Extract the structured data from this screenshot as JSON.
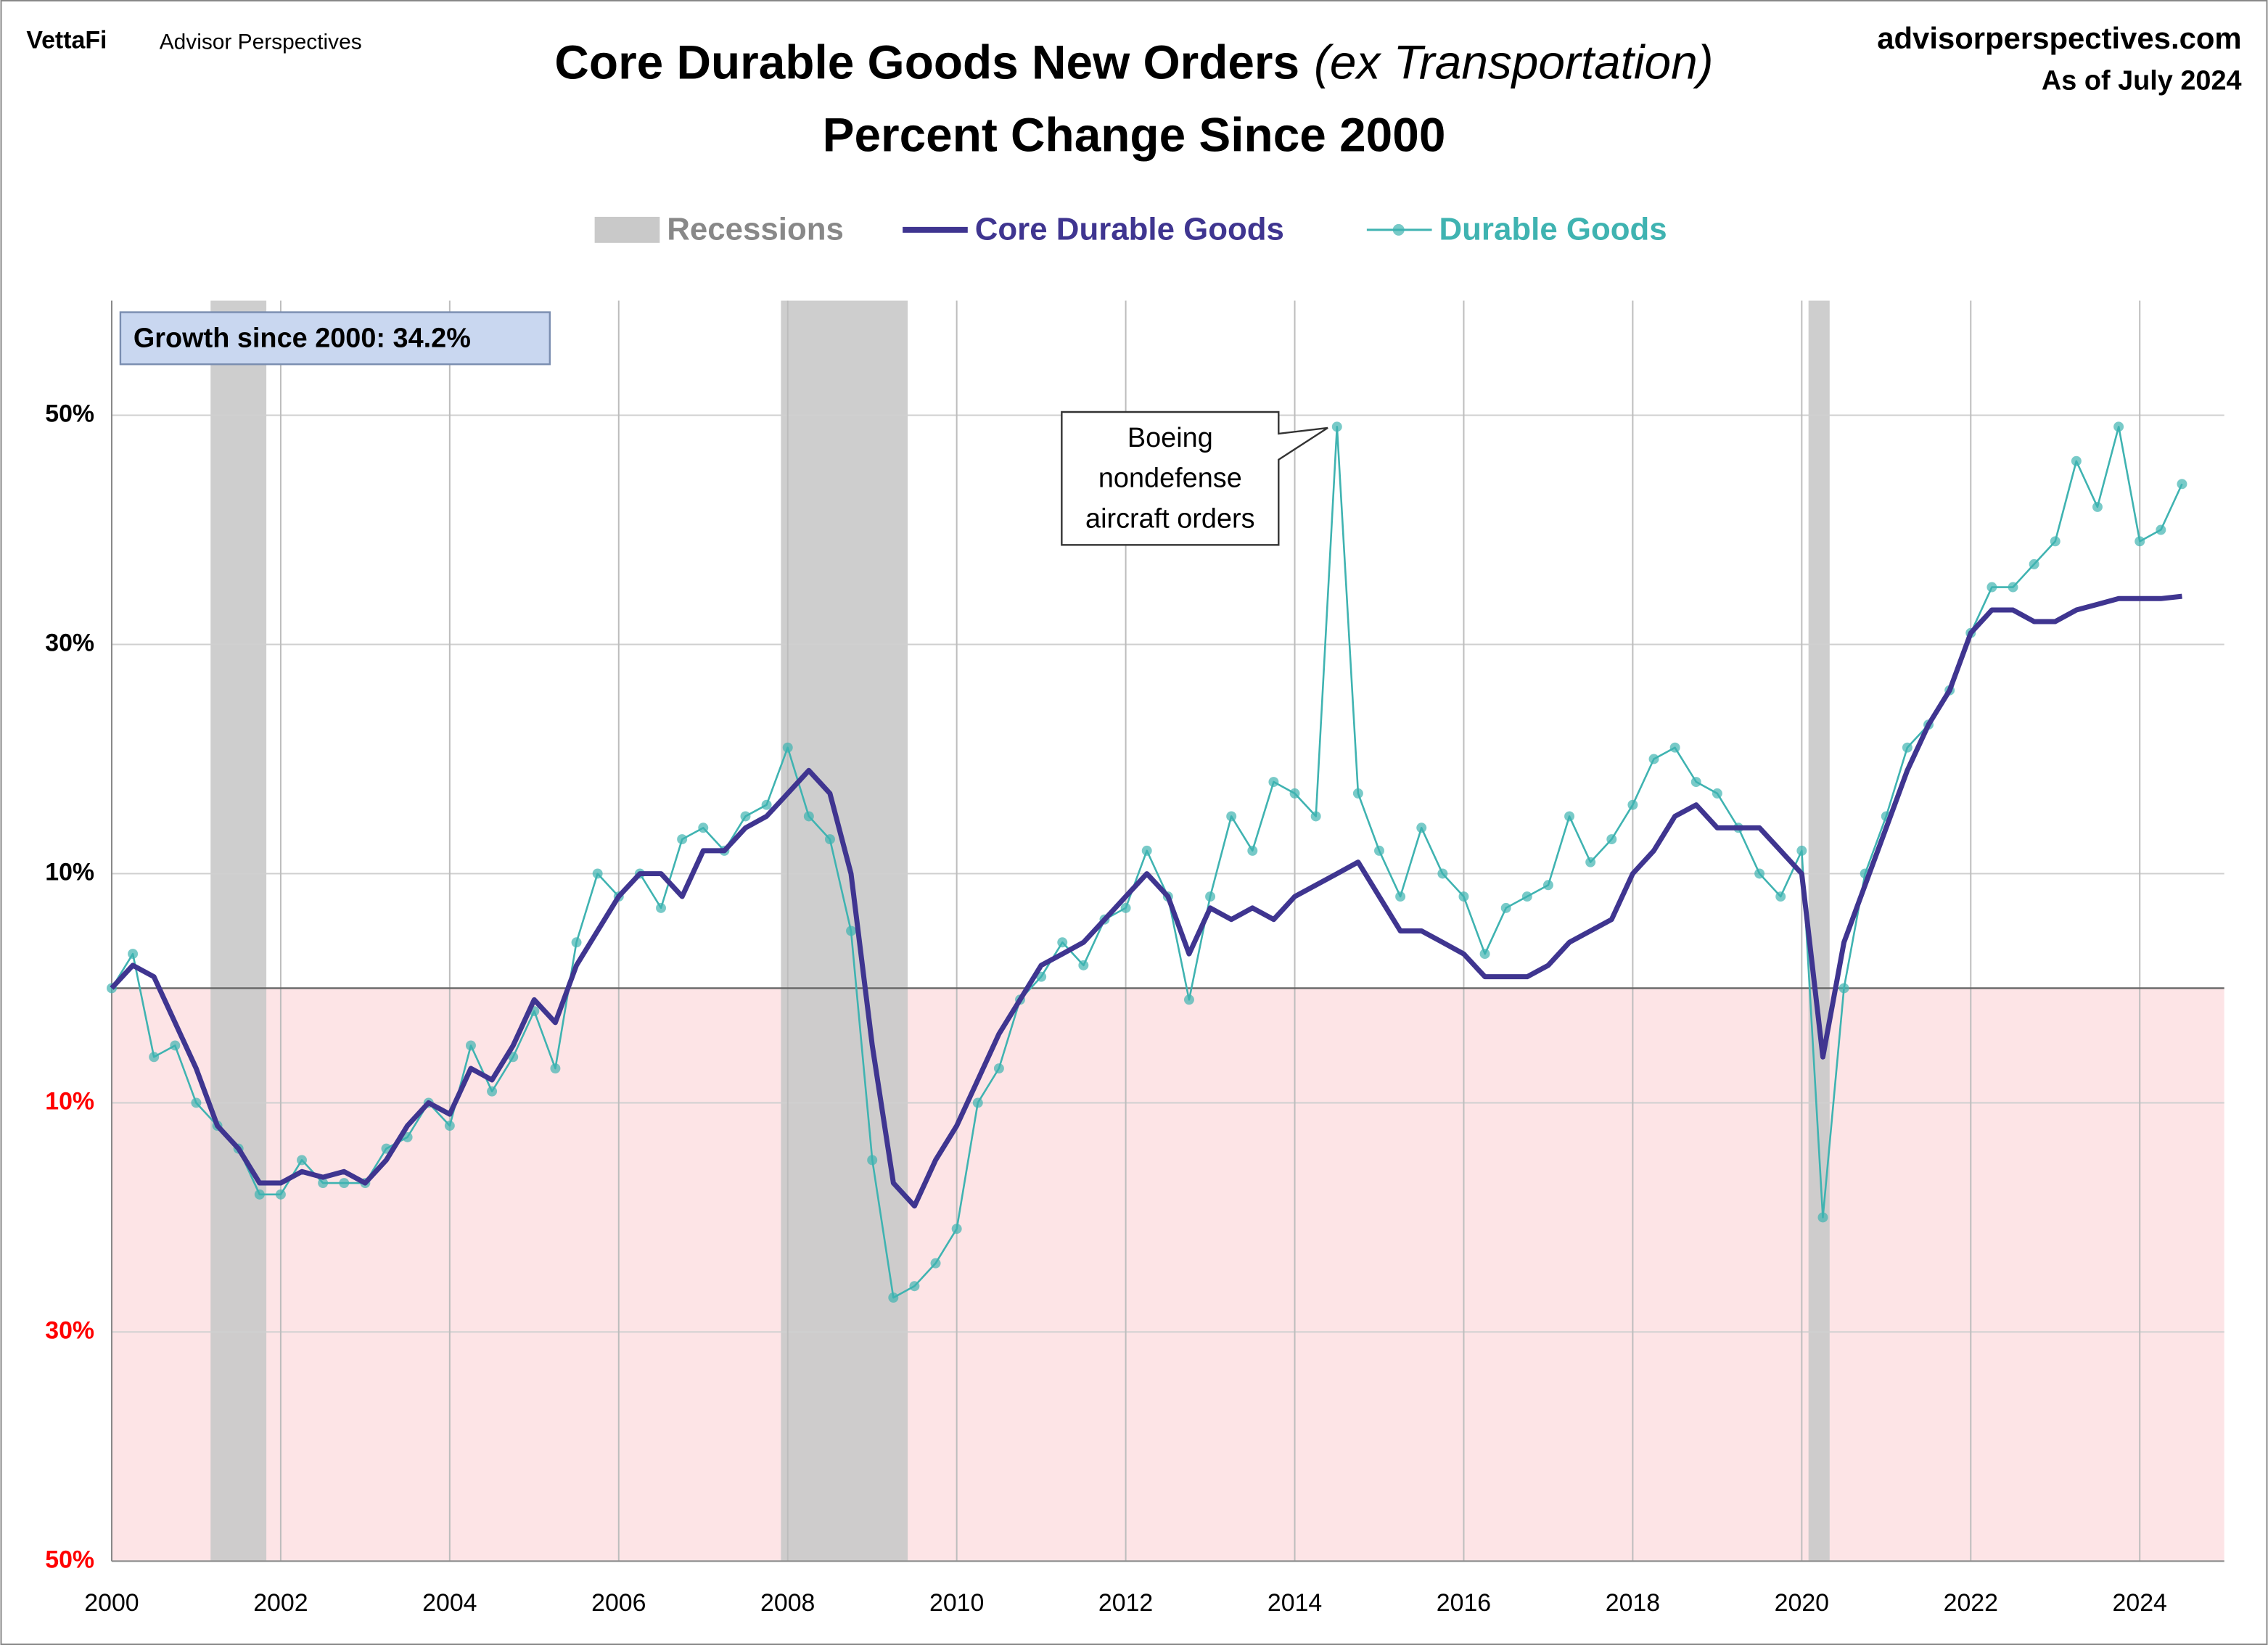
{
  "chart_data": {
    "type": "line",
    "brand": "VettaFi",
    "brand_sub": "Advisor Perspectives",
    "source": "advisorperspectives.com",
    "as_of": "As of July 2024",
    "title": "Core Durable Goods New Orders",
    "title_note": "(ex Transportation)",
    "subtitle": "Percent Change Since 2000",
    "recessions_label": "Recessions",
    "recession_color": "#c9c9c9",
    "recessions": [
      [
        2001.17,
        2001.83
      ],
      [
        2007.92,
        2009.42
      ],
      [
        2020.08,
        2020.33
      ]
    ],
    "x": [
      2000,
      2000.25,
      2000.5,
      2000.75,
      2001,
      2001.25,
      2001.5,
      2001.75,
      2002,
      2002.25,
      2002.5,
      2002.75,
      2003,
      2003.25,
      2003.5,
      2003.75,
      2004,
      2004.25,
      2004.5,
      2004.75,
      2005,
      2005.25,
      2005.5,
      2005.75,
      2006,
      2006.25,
      2006.5,
      2006.75,
      2007,
      2007.25,
      2007.5,
      2007.75,
      2008,
      2008.25,
      2008.5,
      2008.75,
      2009,
      2009.25,
      2009.5,
      2009.75,
      2010,
      2010.25,
      2010.5,
      2010.75,
      2011,
      2011.25,
      2011.5,
      2011.75,
      2012,
      2012.25,
      2012.5,
      2012.75,
      2013,
      2013.25,
      2013.5,
      2013.75,
      2014,
      2014.25,
      2014.5,
      2014.75,
      2015,
      2015.25,
      2015.5,
      2015.75,
      2016,
      2016.25,
      2016.5,
      2016.75,
      2017,
      2017.25,
      2017.5,
      2017.75,
      2018,
      2018.25,
      2018.5,
      2018.75,
      2019,
      2019.25,
      2019.5,
      2019.75,
      2020,
      2020.25,
      2020.5,
      2020.75,
      2021,
      2021.25,
      2021.5,
      2021.75,
      2022,
      2022.25,
      2022.5,
      2022.75,
      2023,
      2023.25,
      2023.5,
      2023.75,
      2024,
      2024.25,
      2024.5
    ],
    "series": [
      {
        "name": "Core Durable Goods",
        "color": "#3f3590",
        "marker": false,
        "values": [
          0,
          2,
          1,
          -3,
          -7,
          -12,
          -14,
          -17,
          -17,
          -16,
          -16.5,
          -16,
          -17,
          -15,
          -12,
          -10,
          -11,
          -7,
          -8,
          -5,
          -1,
          -3,
          2,
          5,
          8,
          10,
          10,
          8,
          12,
          12,
          14,
          15,
          17,
          19,
          17,
          10,
          -5,
          -17,
          -19,
          -15,
          -12,
          -8,
          -4,
          -1,
          2,
          3,
          4,
          6,
          8,
          10,
          8,
          3,
          7,
          6,
          7,
          6,
          8,
          9,
          10,
          11,
          8,
          5,
          5,
          4,
          3,
          1,
          1,
          1,
          2,
          4,
          5,
          6,
          10,
          12,
          15,
          16,
          14,
          14,
          14,
          12,
          10,
          -6,
          4,
          9,
          14,
          19,
          23,
          26,
          31,
          33,
          33,
          32,
          32,
          33,
          33.5,
          34,
          34,
          34,
          34.2
        ]
      },
      {
        "name": "Durable Goods",
        "color": "#3fb3b1",
        "marker": true,
        "values": [
          0,
          3,
          -6,
          -5,
          -10,
          -12,
          -14,
          -18,
          -18,
          -15,
          -17,
          -17,
          -17,
          -14,
          -13,
          -10,
          -12,
          -5,
          -9,
          -6,
          -2,
          -7,
          4,
          10,
          8,
          10,
          7,
          13,
          14,
          12,
          15,
          16,
          21,
          15,
          13,
          5,
          -15,
          -27,
          -26,
          -24,
          -21,
          -10,
          -7,
          -1,
          1,
          4,
          2,
          6,
          7,
          12,
          8,
          -1,
          8,
          15,
          12,
          18,
          17,
          15,
          49,
          17,
          12,
          8,
          14,
          10,
          8,
          3,
          7,
          8,
          9,
          15,
          11,
          13,
          16,
          20,
          21,
          18,
          17,
          14,
          10,
          8,
          12,
          -20,
          0,
          10,
          15,
          21,
          23,
          26,
          31,
          35,
          35,
          37,
          39,
          46,
          42,
          49,
          39,
          40,
          44
        ]
      }
    ],
    "xlim": [
      2000,
      2025
    ],
    "xticks": [
      2000,
      2002,
      2004,
      2006,
      2008,
      2010,
      2012,
      2014,
      2016,
      2018,
      2020,
      2022,
      2024
    ],
    "ylim": [
      -50,
      60
    ],
    "yticks": [
      {
        "value": 50,
        "label": "50%"
      },
      {
        "value": 30,
        "label": "30%"
      },
      {
        "value": 10,
        "label": "10%"
      },
      {
        "value": -10,
        "label": "10%"
      },
      {
        "value": -30,
        "label": "30%"
      },
      {
        "value": -50,
        "label": "50%"
      }
    ],
    "negative_tick_color": "#ff0000",
    "grid": true,
    "annotations": [
      {
        "text": "Growth since 2000:  34.2%"
      },
      {
        "lines": [
          "Boeing",
          "nondefense",
          "aircraft orders"
        ]
      }
    ]
  }
}
